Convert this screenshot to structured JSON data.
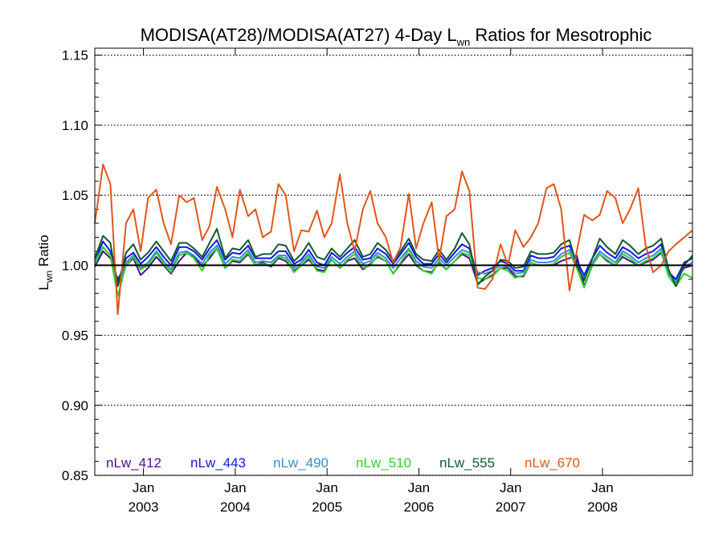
{
  "chart_data": {
    "type": "line",
    "title": {
      "main": "MODISA(AT28)/MODISA(AT27) 4-Day L",
      "sub": "wn",
      "rest": " Ratios for Mesotrophic"
    },
    "ylabel": {
      "main": "L",
      "sub": "wn",
      "rest": " Ratio"
    },
    "xlabel": "",
    "ylim": [
      0.85,
      1.155
    ],
    "xlim": [
      2002.47,
      2008.98
    ],
    "yticks": [
      0.85,
      0.9,
      0.95,
      1.0,
      1.05,
      1.1,
      1.15
    ],
    "ytick_labels": [
      "0.85",
      "0.90",
      "0.95",
      "1.00",
      "1.05",
      "1.10",
      "1.15"
    ],
    "xticks": [
      {
        "x": 2003.0,
        "month": "Jan",
        "year": "2003"
      },
      {
        "x": 2004.0,
        "month": "Jan",
        "year": "2004"
      },
      {
        "x": 2005.0,
        "month": "Jan",
        "year": "2005"
      },
      {
        "x": 2006.0,
        "month": "Jan",
        "year": "2006"
      },
      {
        "x": 2007.0,
        "month": "Jan",
        "year": "2007"
      },
      {
        "x": 2008.0,
        "month": "Jan",
        "year": "2008"
      }
    ],
    "grid": "dotted horizontal",
    "reference_line": 1.0,
    "legend_position": "bottom",
    "x": [
      2002.47,
      2002.56,
      2002.64,
      2002.72,
      2002.81,
      2002.89,
      2002.97,
      2003.05,
      2003.14,
      2003.22,
      2003.3,
      2003.39,
      2003.47,
      2003.55,
      2003.64,
      2003.72,
      2003.8,
      2003.89,
      2003.97,
      2004.05,
      2004.14,
      2004.22,
      2004.3,
      2004.39,
      2004.47,
      2004.55,
      2004.64,
      2004.72,
      2004.8,
      2004.89,
      2004.97,
      2005.05,
      2005.14,
      2005.22,
      2005.3,
      2005.39,
      2005.47,
      2005.55,
      2005.64,
      2005.72,
      2005.8,
      2005.89,
      2005.97,
      2006.05,
      2006.14,
      2006.22,
      2006.3,
      2006.39,
      2006.47,
      2006.55,
      2006.64,
      2006.72,
      2006.8,
      2006.89,
      2006.97,
      2007.05,
      2007.14,
      2007.22,
      2007.3,
      2007.39,
      2007.47,
      2007.55,
      2007.64,
      2007.72,
      2007.8,
      2007.89,
      2007.97,
      2008.05,
      2008.14,
      2008.22,
      2008.3,
      2008.39,
      2008.47,
      2008.55,
      2008.64,
      2008.72,
      2008.8,
      2008.89,
      2008.98
    ],
    "series": [
      {
        "name": "nLw_412",
        "color": "#4b0d8f",
        "values": [
          0.999,
          1.01,
          1.005,
          0.99,
          1.0,
          1.005,
          0.993,
          0.998,
          1.006,
          1.0,
          0.994,
          1.003,
          1.009,
          1.006,
          0.999,
          1.005,
          1.012,
          0.998,
          1.003,
          1.002,
          1.008,
          1.0,
          1.002,
          0.999,
          1.005,
          1.003,
          0.996,
          1.0,
          1.004,
          0.997,
          0.996,
          1.004,
          0.998,
          1.003,
          1.005,
          0.997,
          1.001,
          1.006,
          1.003,
          0.994,
          1.001,
          1.008,
          1.0,
          0.996,
          0.995,
          1.002,
          0.997,
          1.003,
          1.008,
          1.005,
          0.987,
          0.99,
          0.993,
          0.998,
          0.998,
          0.992,
          0.992,
          1.002,
          1.0,
          1.0,
          1.0,
          1.003,
          1.005,
          1.007,
          0.985,
          1.0,
          1.008,
          1.003,
          1.0,
          1.006,
          1.003,
          1.0,
          1.002,
          1.004,
          1.009,
          0.994,
          0.99,
          0.998,
          1.0
        ]
      },
      {
        "name": "nLw_443",
        "color": "#1414e6",
        "values": [
          1.003,
          1.017,
          1.01,
          0.988,
          1.005,
          1.009,
          1.001,
          1.006,
          1.013,
          1.006,
          1.0,
          1.013,
          1.013,
          1.01,
          1.004,
          1.012,
          1.018,
          1.004,
          1.009,
          1.008,
          1.014,
          1.005,
          1.005,
          1.005,
          1.01,
          1.01,
          1.001,
          1.004,
          1.011,
          1.002,
          1.0,
          1.009,
          1.004,
          1.009,
          1.013,
          1.004,
          1.005,
          1.012,
          1.008,
          1.001,
          1.008,
          1.016,
          1.006,
          1.001,
          1.001,
          1.008,
          1.002,
          1.009,
          1.015,
          1.012,
          0.993,
          0.996,
          0.998,
          1.003,
          1.001,
          0.996,
          0.996,
          1.007,
          1.005,
          1.005,
          1.006,
          1.012,
          1.014,
          1.003,
          0.993,
          1.005,
          1.014,
          1.009,
          1.005,
          1.013,
          1.01,
          1.005,
          1.008,
          1.01,
          1.015,
          0.995,
          0.99,
          1.002,
          1.005
        ]
      },
      {
        "name": "nLw_490",
        "color": "#3a8bd2",
        "values": [
          1.003,
          1.013,
          1.007,
          0.985,
          1.002,
          1.007,
          0.998,
          1.002,
          1.01,
          1.003,
          0.997,
          1.009,
          1.01,
          1.007,
          1.001,
          1.009,
          1.014,
          1.001,
          1.006,
          1.005,
          1.011,
          1.002,
          1.003,
          1.002,
          1.007,
          1.007,
          0.998,
          1.002,
          1.008,
          0.999,
          0.998,
          1.006,
          1.001,
          1.006,
          1.01,
          1.001,
          1.003,
          1.009,
          1.005,
          0.998,
          1.005,
          1.012,
          1.003,
          0.999,
          0.998,
          1.005,
          1.0,
          1.006,
          1.011,
          1.009,
          0.995,
          0.994,
          0.996,
          1.0,
          0.999,
          0.994,
          0.995,
          1.004,
          1.002,
          1.002,
          1.003,
          1.008,
          1.011,
          1.0,
          0.991,
          1.002,
          1.01,
          1.006,
          1.002,
          1.01,
          1.007,
          1.002,
          1.005,
          1.007,
          1.012,
          0.994,
          0.988,
          0.999,
          1.002
        ]
      },
      {
        "name": "nLw_510",
        "color": "#2fd12f",
        "values": [
          1.001,
          1.013,
          1.007,
          0.978,
          1.0,
          1.006,
          0.997,
          1.0,
          1.009,
          1.001,
          0.995,
          1.007,
          1.009,
          1.005,
          0.996,
          1.007,
          1.012,
          0.998,
          1.004,
          1.003,
          1.009,
          1.0,
          1.001,
          1.0,
          1.006,
          1.005,
          0.995,
          1.0,
          1.006,
          0.996,
          0.995,
          1.004,
          0.998,
          1.004,
          1.008,
          0.998,
          1.0,
          1.007,
          1.003,
          0.994,
          1.002,
          1.011,
          1.001,
          0.996,
          0.994,
          1.003,
          0.997,
          1.003,
          1.009,
          1.007,
          0.991,
          0.99,
          0.992,
          0.998,
          0.996,
          0.991,
          0.993,
          1.002,
          1.0,
          1.0,
          1.001,
          1.006,
          1.009,
          0.998,
          0.984,
          1.0,
          1.008,
          1.004,
          1.0,
          1.008,
          1.005,
          1.0,
          1.003,
          1.005,
          1.01,
          0.992,
          0.985,
          0.994,
          0.991
        ]
      },
      {
        "name": "nLw_555",
        "color": "#0e5a2a",
        "values": [
          1.005,
          1.021,
          1.016,
          0.985,
          1.009,
          1.015,
          1.004,
          1.009,
          1.017,
          1.01,
          1.003,
          1.016,
          1.016,
          1.012,
          1.006,
          1.016,
          1.026,
          1.005,
          1.012,
          1.011,
          1.018,
          1.006,
          1.008,
          1.008,
          1.015,
          1.014,
          1.003,
          1.008,
          1.016,
          1.006,
          1.004,
          1.012,
          1.006,
          1.012,
          1.018,
          1.006,
          1.008,
          1.016,
          1.011,
          1.003,
          1.01,
          1.019,
          1.008,
          1.004,
          1.003,
          1.011,
          1.004,
          1.012,
          1.023,
          1.015,
          0.986,
          0.992,
          0.996,
          1.004,
          1.003,
          0.998,
          0.999,
          1.01,
          1.008,
          1.008,
          1.009,
          1.015,
          1.018,
          1.0,
          0.989,
          1.005,
          1.019,
          1.013,
          1.008,
          1.018,
          1.014,
          1.008,
          1.012,
          1.014,
          1.019,
          0.997,
          0.985,
          1.0,
          1.007
        ]
      },
      {
        "name": "nLw_670",
        "color": "#e0561a",
        "values": [
          1.03,
          1.072,
          1.058,
          0.965,
          1.03,
          1.04,
          1.01,
          1.048,
          1.054,
          1.03,
          1.015,
          1.05,
          1.045,
          1.048,
          1.018,
          1.028,
          1.056,
          1.04,
          1.02,
          1.054,
          1.035,
          1.04,
          1.02,
          1.024,
          1.058,
          1.05,
          1.01,
          1.025,
          1.024,
          1.039,
          1.02,
          1.03,
          1.065,
          1.03,
          1.01,
          1.04,
          1.053,
          1.03,
          1.02,
          1.002,
          1.013,
          1.051,
          1.012,
          1.03,
          1.045,
          1.004,
          1.035,
          1.04,
          1.067,
          1.053,
          0.984,
          0.983,
          0.99,
          1.015,
          1.0,
          1.025,
          1.013,
          1.02,
          1.03,
          1.055,
          1.058,
          1.04,
          0.982,
          1.01,
          1.036,
          1.032,
          1.036,
          1.053,
          1.048,
          1.03,
          1.04,
          1.055,
          1.014,
          0.995,
          1.0,
          1.01,
          1.015,
          1.02,
          1.025
        ]
      }
    ]
  }
}
